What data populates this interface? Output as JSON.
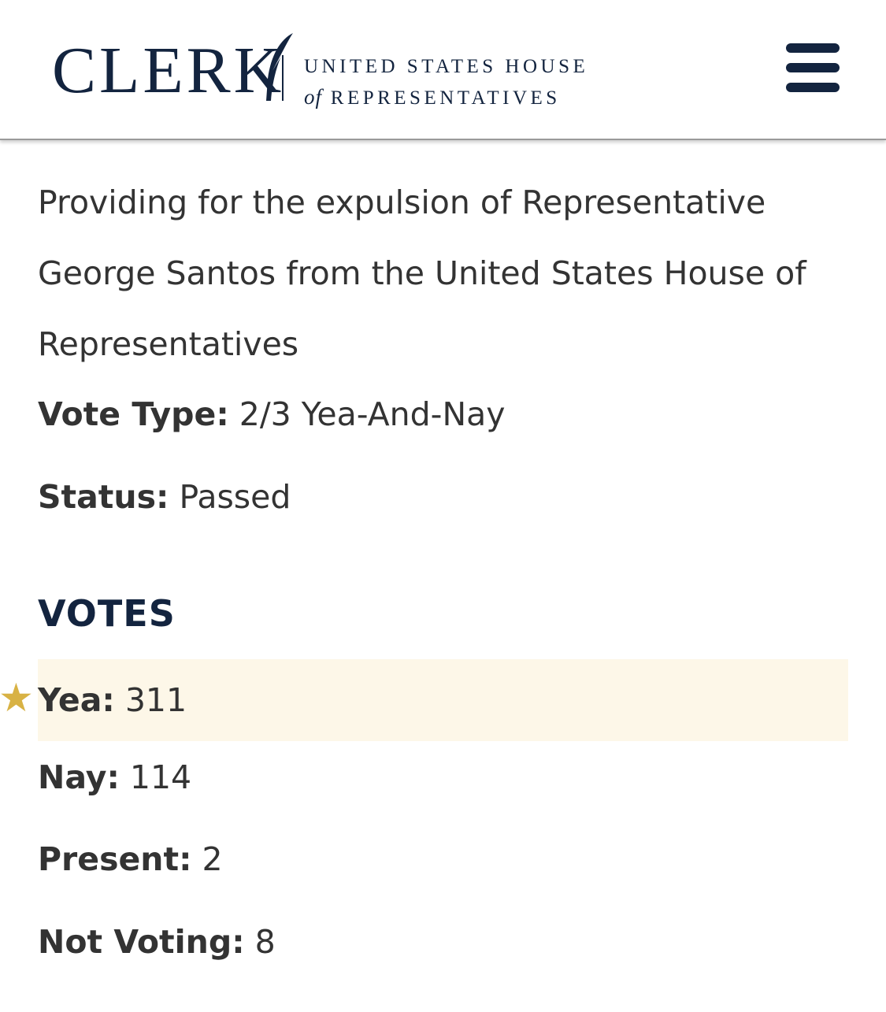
{
  "header": {
    "logo_text": "CLERK",
    "tagline_line1": "UNITED STATES HOUSE",
    "tagline_of": "of",
    "tagline_line2": "REPRESENTATIVES",
    "menu_icon": "hamburger-menu-icon"
  },
  "vote": {
    "description": "Providing for the expulsion of Representative George Santos from the United States House of Representatives",
    "vote_type_label": "Vote Type:",
    "vote_type_value": "2/3 Yea-And-Nay",
    "status_label": "Status:",
    "status_value": "Passed"
  },
  "votes": {
    "heading": "VOTES",
    "rows": [
      {
        "label": "Yea:",
        "value": "311",
        "highlighted": true,
        "icon": "star-icon"
      },
      {
        "label": "Nay:",
        "value": "114"
      },
      {
        "label": "Present:",
        "value": "2"
      },
      {
        "label": "Not Voting:",
        "value": "8"
      }
    ]
  },
  "colors": {
    "navy": "#13243f",
    "star": "#d8b244",
    "highlight": "#fdf7e8",
    "text": "#333333"
  }
}
